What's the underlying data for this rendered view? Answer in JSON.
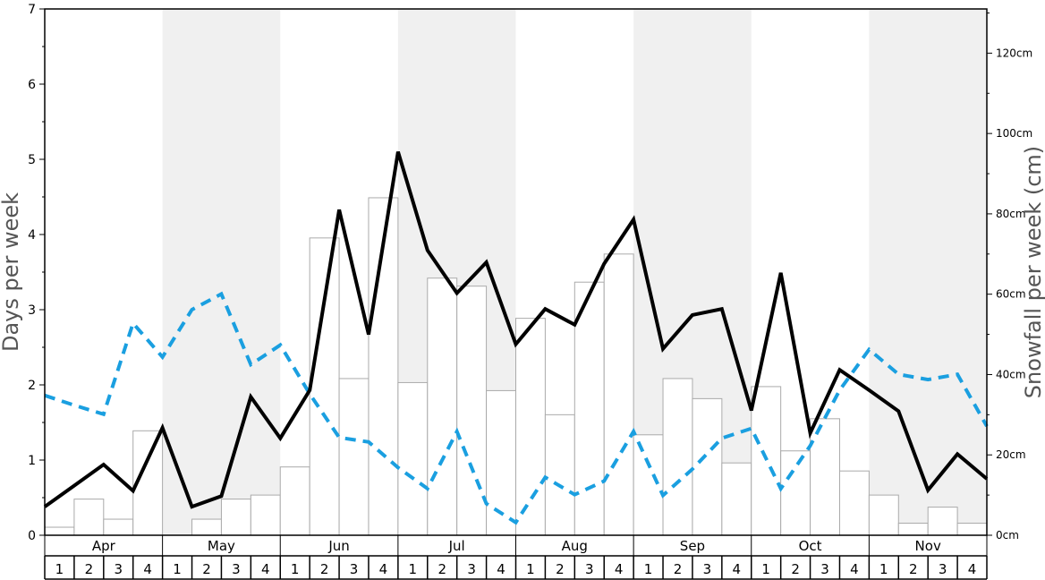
{
  "chart_data": {
    "type": "bar",
    "ylabel_left": "Days per week",
    "ylabel_right": "Snowfall per week (cm)",
    "ylim_left": [
      0,
      7
    ],
    "ylim_right": [
      0,
      131
    ],
    "left_ticks": [
      "0",
      "1",
      "2",
      "3",
      "4",
      "5",
      "6",
      "7"
    ],
    "right_ticks": [
      {
        "value": 0,
        "label": "0cm"
      },
      {
        "value": 20,
        "label": "20cm"
      },
      {
        "value": 40,
        "label": "40cm"
      },
      {
        "value": 60,
        "label": "60cm"
      },
      {
        "value": 80,
        "label": "80cm"
      },
      {
        "value": 100,
        "label": "100cm"
      },
      {
        "value": 120,
        "label": "120cm"
      }
    ],
    "months": [
      "Apr",
      "May",
      "Jun",
      "Jul",
      "Aug",
      "Sep",
      "Oct",
      "Nov"
    ],
    "weeks": [
      "1",
      "2",
      "3",
      "4"
    ],
    "month_shading": [
      false,
      true,
      false,
      true,
      false,
      true,
      false,
      true
    ],
    "colors": {
      "bar_fill": "#ffffff",
      "bar_stroke": "#aaaaaa",
      "solid_line": "#000000",
      "dashed_line": "#1a9fe0",
      "shade": "#f0f0f0",
      "axis": "#000000",
      "title": "#555555"
    },
    "series": [
      {
        "type": "bar",
        "axis": "right",
        "values": [
          2,
          9,
          4,
          26,
          0,
          4,
          9,
          10,
          17,
          74,
          39,
          84,
          38,
          64,
          62,
          36,
          54,
          30,
          63,
          70,
          25,
          39,
          34,
          18,
          37,
          21,
          29,
          16,
          10,
          3,
          7,
          3
        ]
      },
      {
        "type": "line",
        "style": "solid",
        "axis": "left",
        "values": [
          0.38,
          0.66,
          0.94,
          0.59,
          1.43,
          0.38,
          0.52,
          1.84,
          1.29,
          1.93,
          4.33,
          2.67,
          5.1,
          3.79,
          3.22,
          3.63,
          2.54,
          3.01,
          2.8,
          3.61,
          4.2,
          2.48,
          2.93,
          3.01,
          1.66,
          3.49,
          1.36,
          2.2,
          1.93,
          1.65,
          0.6,
          1.08,
          0.75
        ]
      },
      {
        "type": "line",
        "style": "dashed",
        "axis": "left",
        "values": [
          1.86,
          1.73,
          1.61,
          2.82,
          2.37,
          3.0,
          3.21,
          2.27,
          2.53,
          1.88,
          1.3,
          1.24,
          0.9,
          0.62,
          1.38,
          0.42,
          0.17,
          0.77,
          0.54,
          0.72,
          1.38,
          0.53,
          0.88,
          1.29,
          1.42,
          0.62,
          1.19,
          1.93,
          2.47,
          2.14,
          2.07,
          2.14,
          1.45
        ]
      }
    ]
  }
}
